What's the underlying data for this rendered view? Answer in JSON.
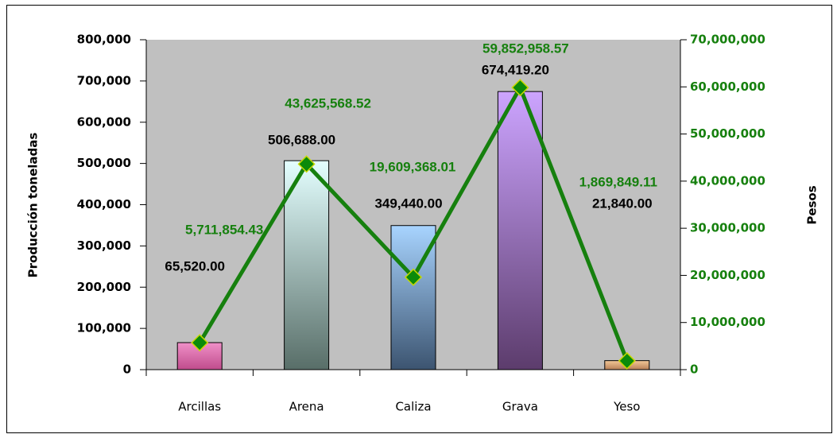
{
  "chart_data": {
    "type": "bar_line",
    "categories": [
      "Arcillas",
      "Arena",
      "Caliza",
      "Grava",
      "Yeso"
    ],
    "ylabel": "Producción toneladas",
    "y2label": "Pesos",
    "ylim": [
      0,
      800000
    ],
    "yticks": [
      {
        "value": 0,
        "label": "0"
      },
      {
        "value": 100000,
        "label": "100,000"
      },
      {
        "value": 200000,
        "label": "200,000"
      },
      {
        "value": 300000,
        "label": "300,000"
      },
      {
        "value": 400000,
        "label": "400,000"
      },
      {
        "value": 500000,
        "label": "500,000"
      },
      {
        "value": 600000,
        "label": "600,000"
      },
      {
        "value": 700000,
        "label": "700,000"
      },
      {
        "value": 800000,
        "label": "800,000"
      }
    ],
    "y2lim": [
      0,
      70000000
    ],
    "y2ticks": [
      {
        "value": 0,
        "label": "0"
      },
      {
        "value": 10000000,
        "label": "10,000,000"
      },
      {
        "value": 20000000,
        "label": "20,000,000"
      },
      {
        "value": 30000000,
        "label": "30,000,000"
      },
      {
        "value": 40000000,
        "label": "40,000,000"
      },
      {
        "value": 50000000,
        "label": "50,000,000"
      },
      {
        "value": 60000000,
        "label": "60,000,000"
      },
      {
        "value": 70000000,
        "label": "70,000,000"
      }
    ],
    "series": [
      {
        "type": "bar",
        "colors": [
          [
            "#f090c8",
            "#c04c8c"
          ],
          [
            "#e4ffff",
            "#586e68"
          ],
          [
            "#a8d4ff",
            "#3c5470"
          ],
          [
            "#cca4ff",
            "#5c3c6c"
          ],
          [
            "#f4c898",
            "#b88058"
          ]
        ],
        "values": [
          65520,
          506688,
          349440,
          674419.2,
          21840
        ],
        "value_labels": [
          "65,520.00",
          "506,688.00",
          "349,440.00",
          "674,419.20",
          "21,840.00"
        ]
      },
      {
        "type": "line",
        "axis": "y2",
        "color": "#16800e",
        "marker_color": "#0a8a0a",
        "marker_edge": "#c8d800",
        "values": [
          5711854.43,
          43625568.52,
          19609368.01,
          59852958.57,
          1869849.11
        ],
        "value_labels": [
          "5,711,854.43",
          "43,625,568.52",
          "19,609,368.01",
          "59,852,958.57",
          "1,869,849.11"
        ]
      }
    ]
  }
}
